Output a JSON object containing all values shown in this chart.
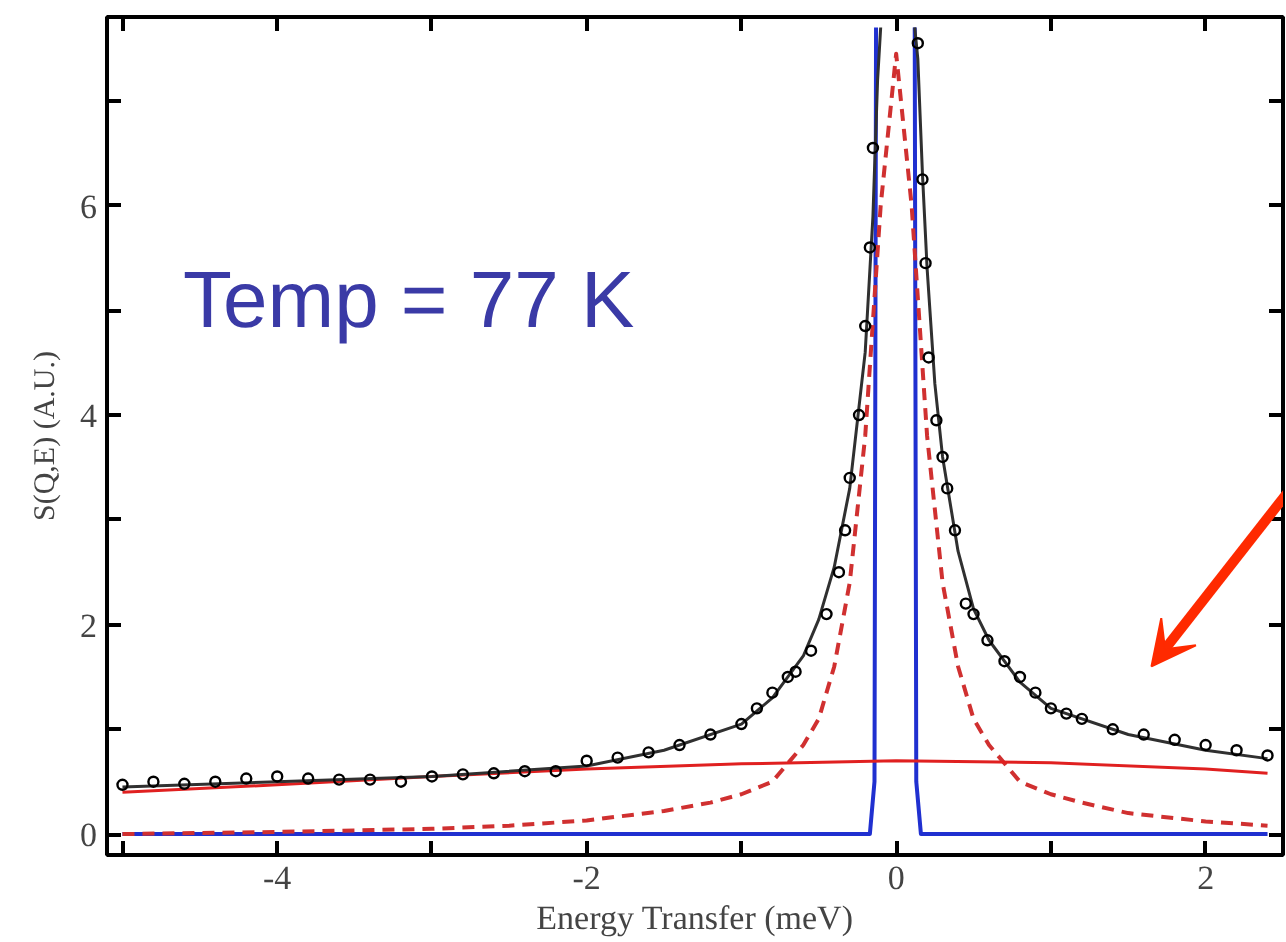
{
  "chart_data": {
    "type": "line",
    "xlabel": "Energy Transfer (meV)",
    "ylabel": "S(Q,E) (A.U.)",
    "annotations": [
      "Temp = 77 K"
    ],
    "xlim": [
      -5.1,
      2.5
    ],
    "ylim": [
      -0.2,
      7.8
    ],
    "xticks": [
      {
        "value": -5,
        "label": null
      },
      -4,
      {
        "value": -3,
        "label": null
      },
      -2,
      {
        "value": -1,
        "label": null
      },
      0,
      {
        "value": 1,
        "label": null
      },
      2
    ],
    "yticks": [
      0,
      {
        "value": 1,
        "label": null
      },
      2,
      {
        "value": 3,
        "label": null
      },
      4,
      {
        "value": 5,
        "label": null
      },
      6,
      {
        "value": 7,
        "label": null
      }
    ],
    "grid": false,
    "series": [
      {
        "color": "#2030d0",
        "line_style": "solid",
        "x": [
          -5.0,
          -0.17,
          -0.14,
          -0.13,
          0.0,
          0.12,
          0.13,
          0.16,
          2.4
        ],
        "values": [
          0,
          0,
          0.5,
          7.7,
          null,
          7.7,
          0.5,
          0,
          0
        ]
      },
      {
        "color": "#d03030",
        "line_style": "dashed",
        "x": [
          -5,
          -4,
          -3,
          -2.5,
          -2,
          -1.5,
          -1.2,
          -1,
          -0.8,
          -0.6,
          -0.5,
          -0.4,
          -0.3,
          -0.2,
          -0.1,
          0,
          0.1,
          0.2,
          0.3,
          0.4,
          0.5,
          0.6,
          0.8,
          1.0,
          1.2,
          1.5,
          2.0,
          2.4
        ],
        "values": [
          0.0,
          0.02,
          0.05,
          0.08,
          0.13,
          0.22,
          0.3,
          0.38,
          0.5,
          0.85,
          1.1,
          1.6,
          2.4,
          3.8,
          6.0,
          7.45,
          6.0,
          3.8,
          2.4,
          1.6,
          1.1,
          0.85,
          0.5,
          0.38,
          0.3,
          0.2,
          0.12,
          0.08
        ]
      },
      {
        "color": "#e02020",
        "line_style": "solid",
        "x": [
          -5,
          -4,
          -3,
          -2,
          -1,
          0,
          1,
          2,
          2.4
        ],
        "values": [
          0.4,
          0.47,
          0.55,
          0.62,
          0.67,
          0.7,
          0.68,
          0.62,
          0.58
        ]
      },
      {
        "color": "#303030",
        "line_style": "solid",
        "x": [
          -5,
          -4,
          -3,
          -2,
          -1.5,
          -1,
          -0.8,
          -0.6,
          -0.5,
          -0.4,
          -0.3,
          -0.2,
          -0.15,
          -0.12,
          -0.1,
          0.0,
          0.12,
          0.14,
          0.17,
          0.2,
          0.25,
          0.3,
          0.4,
          0.5,
          0.6,
          0.8,
          1.0,
          1.5,
          2.0,
          2.4
        ],
        "values": [
          0.45,
          0.5,
          0.55,
          0.65,
          0.8,
          1.05,
          1.3,
          1.7,
          2.05,
          2.55,
          3.3,
          4.6,
          5.9,
          7.2,
          7.7,
          null,
          7.7,
          7.4,
          6.3,
          5.4,
          4.3,
          3.6,
          2.7,
          2.15,
          1.85,
          1.45,
          1.2,
          0.95,
          0.8,
          0.72
        ]
      },
      {
        "type": "scatter",
        "marker": "circle",
        "color": "#000000",
        "x": [
          -5.0,
          -4.8,
          -4.6,
          -4.4,
          -4.2,
          -4.0,
          -3.8,
          -3.6,
          -3.4,
          -3.2,
          -3.0,
          -2.8,
          -2.6,
          -2.4,
          -2.2,
          -2.0,
          -1.8,
          -1.6,
          -1.4,
          -1.2,
          -1.0,
          -0.9,
          -0.8,
          -0.7,
          -0.65,
          -0.55,
          -0.45,
          -0.37,
          -0.33,
          -0.3,
          -0.24,
          -0.2,
          -0.17,
          -0.15,
          0.14,
          0.17,
          0.19,
          0.21,
          0.26,
          0.3,
          0.33,
          0.38,
          0.45,
          0.5,
          0.59,
          0.7,
          0.8,
          0.9,
          1.0,
          1.1,
          1.2,
          1.4,
          1.6,
          1.8,
          2.0,
          2.2,
          2.4
        ],
        "values": [
          0.47,
          0.5,
          0.48,
          0.5,
          0.53,
          0.55,
          0.53,
          0.52,
          0.52,
          0.5,
          0.55,
          0.57,
          0.58,
          0.6,
          0.6,
          0.7,
          0.73,
          0.78,
          0.85,
          0.95,
          1.05,
          1.2,
          1.35,
          1.5,
          1.55,
          1.75,
          2.1,
          2.5,
          2.9,
          3.4,
          4.0,
          4.85,
          5.6,
          6.55,
          7.55,
          6.25,
          5.45,
          4.55,
          3.95,
          3.6,
          3.3,
          2.9,
          2.2,
          2.1,
          1.85,
          1.65,
          1.5,
          1.35,
          1.2,
          1.15,
          1.1,
          1.0,
          0.95,
          0.9,
          0.85,
          0.8,
          0.75
        ]
      }
    ]
  }
}
